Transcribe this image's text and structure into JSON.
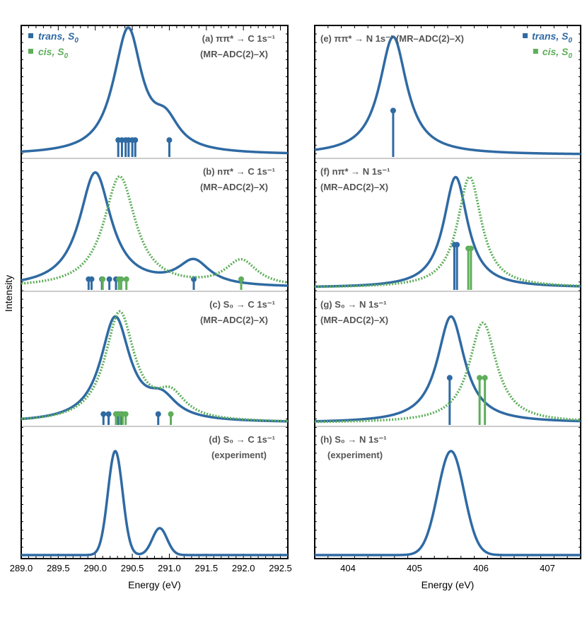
{
  "colors": {
    "trans": "#2f6aa3",
    "cis": "#5eae5a",
    "label": "#555555",
    "divider": "#cccccc"
  },
  "y_axis_label": "Intensity",
  "legend": [
    {
      "key": "trans",
      "text": "trans, S",
      "sub": "0"
    },
    {
      "key": "cis",
      "text": "cis, S",
      "sub": "0"
    }
  ],
  "chart_data": [
    {
      "id": "left",
      "type": "line",
      "xlabel": "Energy (eV)",
      "xlim": [
        289.0,
        292.6
      ],
      "xticks": [
        "289.0",
        "289.5",
        "290.0",
        "290.5",
        "291.0",
        "291.5",
        "292.0",
        "292.5"
      ],
      "panels": [
        {
          "id": "a",
          "label": [
            "(a) ππ* → C 1s⁻¹",
            "(MR–ADC(2)–X)"
          ],
          "series": [
            {
              "key": "trans",
              "style": "solid",
              "kind": "lorentz",
              "w": 0.22,
              "peaks": [
                [
                  290.45,
                  0.93
                ],
                [
                  290.95,
                  0.22
                ],
                [
                  290.3,
                  0.1
                ]
              ],
              "sticks": [
                [
                  290.31,
                  0.12
                ],
                [
                  290.36,
                  0.12
                ],
                [
                  290.41,
                  0.12
                ],
                [
                  290.45,
                  0.12
                ],
                [
                  290.5,
                  0.12
                ],
                [
                  290.54,
                  0.12
                ],
                [
                  291.0,
                  0.12
                ]
              ]
            }
          ]
        },
        {
          "id": "b",
          "label": [
            "(b) nπ* → C 1s⁻¹",
            "(MR–ADC(2)–X)"
          ],
          "series": [
            {
              "key": "trans",
              "style": "solid",
              "kind": "lorentz",
              "w": 0.26,
              "peaks": [
                [
                  290.0,
                  0.93
                ],
                [
                  291.33,
                  0.2
                ]
              ],
              "sticks": [
                [
                  289.91,
                  0.07
                ],
                [
                  289.95,
                  0.07
                ],
                [
                  290.09,
                  0.07
                ],
                [
                  290.19,
                  0.07
                ],
                [
                  290.28,
                  0.07
                ],
                [
                  291.33,
                  0.07
                ]
              ]
            },
            {
              "key": "cis",
              "style": "dotted",
              "kind": "lorentz",
              "w": 0.26,
              "peaks": [
                [
                  290.33,
                  0.9
                ],
                [
                  291.97,
                  0.21
                ]
              ],
              "sticks": [
                [
                  290.1,
                  0.07
                ],
                [
                  290.32,
                  0.07
                ],
                [
                  290.35,
                  0.07
                ],
                [
                  290.42,
                  0.07
                ],
                [
                  291.97,
                  0.07
                ]
              ]
            }
          ]
        },
        {
          "id": "c",
          "label": [
            "(c) S₀ → C 1s⁻¹",
            "(MR–ADC(2)–X)"
          ],
          "series": [
            {
              "key": "trans",
              "style": "solid",
              "kind": "lorentz",
              "w": 0.24,
              "peaks": [
                [
                  290.27,
                  0.83
                ],
                [
                  290.9,
                  0.16
                ]
              ],
              "sticks": [
                [
                  290.11,
                  0.07
                ],
                [
                  290.18,
                  0.07
                ],
                [
                  290.28,
                  0.07
                ],
                [
                  290.31,
                  0.07
                ],
                [
                  290.35,
                  0.07
                ],
                [
                  290.85,
                  0.07
                ]
              ]
            },
            {
              "key": "cis",
              "style": "dotted",
              "kind": "lorentz",
              "w": 0.24,
              "peaks": [
                [
                  290.33,
                  0.87
                ],
                [
                  291.02,
                  0.19
                ]
              ],
              "sticks": [
                [
                  290.28,
                  0.07
                ],
                [
                  290.33,
                  0.07
                ],
                [
                  290.37,
                  0.07
                ],
                [
                  290.41,
                  0.07
                ],
                [
                  291.02,
                  0.07
                ]
              ]
            }
          ]
        },
        {
          "id": "d",
          "label": [
            "(d) S₀ → C 1s⁻¹",
            "(experiment)"
          ],
          "series": [
            {
              "key": "trans",
              "style": "solid",
              "kind": "gauss",
              "w": 0.14,
              "peaks": [
                [
                  290.27,
                  0.85
                ],
                [
                  290.87,
                  0.22
                ]
              ],
              "sticks": []
            }
          ]
        }
      ]
    },
    {
      "id": "right",
      "type": "line",
      "xlabel": "Energy (eV)",
      "xlim": [
        403.5,
        407.5
      ],
      "xticks": [
        "404",
        "405",
        "406",
        "407"
      ],
      "panels": [
        {
          "id": "e",
          "label": [
            "(e) ππ* → N 1s⁻¹ (MR–ADC(2)–X)"
          ],
          "series": [
            {
              "key": "trans",
              "style": "solid",
              "kind": "lorentz",
              "w": 0.25,
              "peaks": [
                [
                  404.68,
                  0.96
                ]
              ],
              "sticks": [
                [
                  404.68,
                  0.36
                ]
              ]
            }
          ]
        },
        {
          "id": "f",
          "label": [
            "(f) nπ* → N 1s⁻¹",
            "(MR–ADC(2)–X)"
          ],
          "series": [
            {
              "key": "trans",
              "style": "solid",
              "kind": "lorentz",
              "w": 0.22,
              "peaks": [
                [
                  405.62,
                  0.9
                ]
              ],
              "sticks": [
                [
                  405.6,
                  0.35
                ],
                [
                  405.64,
                  0.35
                ]
              ]
            },
            {
              "key": "cis",
              "style": "dotted",
              "kind": "lorentz",
              "w": 0.22,
              "peaks": [
                [
                  405.83,
                  0.9
                ]
              ],
              "sticks": [
                [
                  405.81,
                  0.32
                ],
                [
                  405.85,
                  0.32
                ]
              ]
            }
          ]
        },
        {
          "id": "g",
          "label": [
            "(g) S₀ → N 1s⁻¹",
            "(MR–ADC(2)–X)"
          ],
          "series": [
            {
              "key": "trans",
              "style": "solid",
              "kind": "lorentz",
              "w": 0.25,
              "peaks": [
                [
                  405.55,
                  0.85
                ]
              ],
              "sticks": [
                [
                  405.53,
                  0.36
                ]
              ]
            },
            {
              "key": "cis",
              "style": "dotted",
              "kind": "lorentz",
              "w": 0.25,
              "peaks": [
                [
                  406.03,
                  0.8
                ]
              ],
              "sticks": [
                [
                  405.98,
                  0.36
                ],
                [
                  406.06,
                  0.36
                ]
              ]
            }
          ]
        },
        {
          "id": "h",
          "label": [
            "(h) S₀ → N 1s⁻¹",
            "(experiment)"
          ],
          "series": [
            {
              "key": "trans",
              "style": "solid",
              "kind": "gauss",
              "w": 0.28,
              "peaks": [
                [
                  405.55,
                  0.85
                ]
              ],
              "sticks": []
            }
          ]
        }
      ]
    }
  ]
}
